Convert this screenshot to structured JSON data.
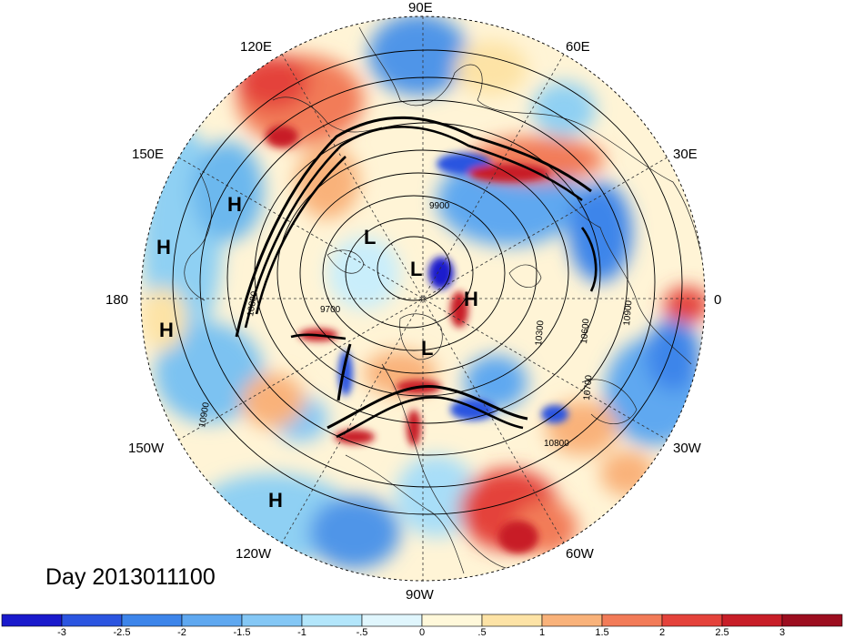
{
  "date_label": "Day 2013011100",
  "longitude_labels": {
    "lon_90e": "90E",
    "lon_60e": "60E",
    "lon_30e": "30E",
    "lon_0": "0",
    "lon_30w": "30W",
    "lon_60w": "60W",
    "lon_90w": "90W",
    "lon_120w": "120W",
    "lon_150w": "150W",
    "lon_180": "180",
    "lon_150e": "150E",
    "lon_120e": "120E"
  },
  "pressure_centers": [
    "H",
    "H",
    "H",
    "H",
    "L",
    "L",
    "H",
    "L"
  ],
  "contour_labels": [
    "9900",
    "9700",
    "10900",
    "10800",
    "10700",
    "10800",
    "10900",
    "10600",
    "10300"
  ],
  "colorbar": {
    "ticks": [
      "-3",
      "-2.5",
      "-2",
      "-1.5",
      "-1",
      "-.5",
      "0",
      ".5",
      "1",
      "1.5",
      "2",
      "2.5",
      "3"
    ],
    "colors": [
      "#1a1acc",
      "#2b55e0",
      "#3d85ea",
      "#5fa8f0",
      "#84c7f5",
      "#b3e6fb",
      "#e0f6fd",
      "#fff8da",
      "#fde3a6",
      "#f9b27a",
      "#f27b58",
      "#e4423b",
      "#c81e28",
      "#9c0d1f"
    ]
  }
}
